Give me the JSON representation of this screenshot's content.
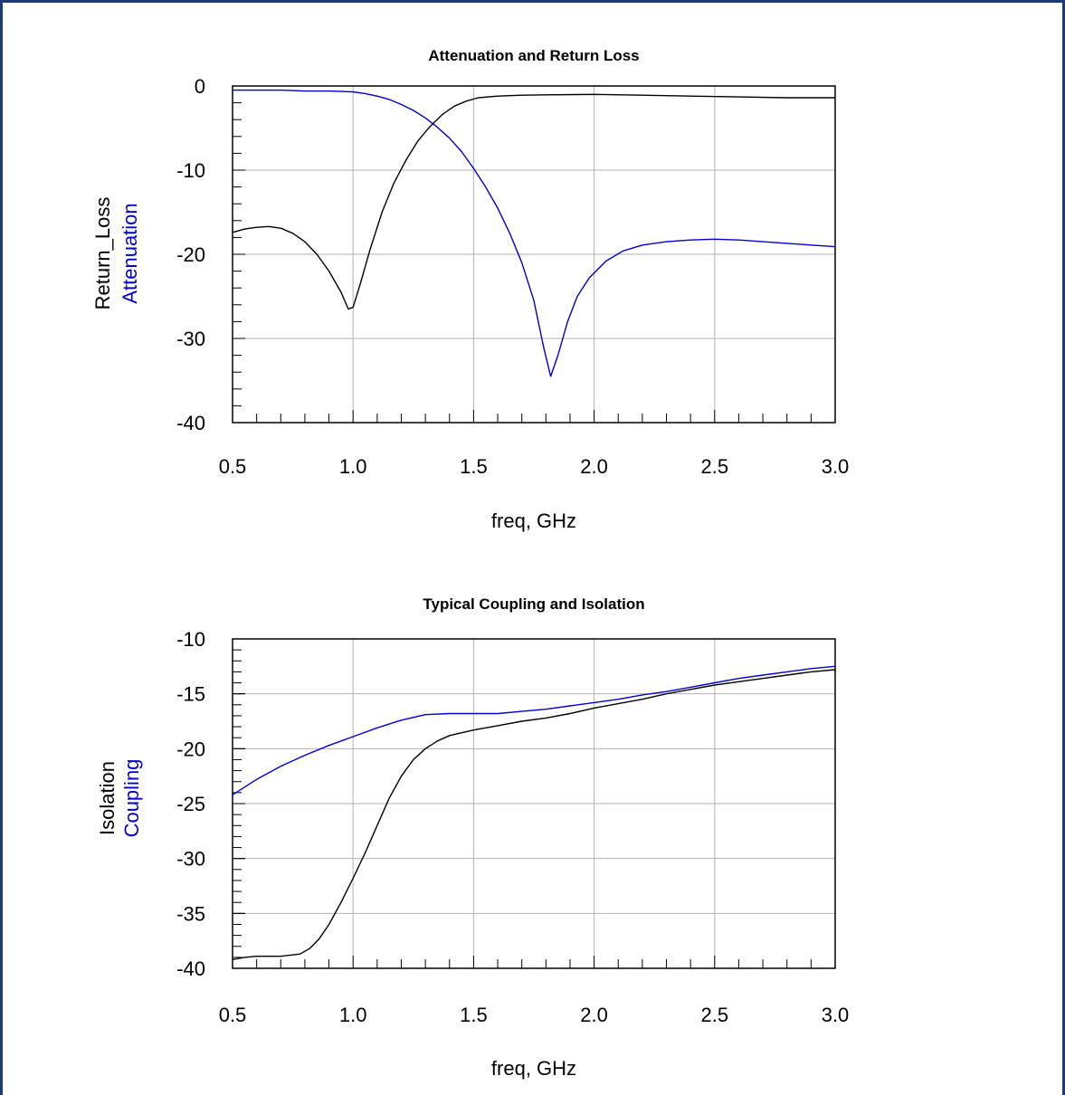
{
  "colors": {
    "black_series": "#000000",
    "blue_series": "#0000cc",
    "grid": "#b3b3b3",
    "frame": "#1f3a7a"
  },
  "chart_data": [
    {
      "type": "line",
      "title": "Attenuation and Return Loss",
      "xlabel": "freq, GHz",
      "ylabel_lines": [
        "Return_Loss",
        "Attenuation"
      ],
      "xlim": [
        0.5,
        3.0
      ],
      "ylim": [
        -40,
        0
      ],
      "xticks": [
        "0.5",
        "1.0",
        "1.5",
        "2.0",
        "2.5",
        "3.0"
      ],
      "yticks": [
        "0",
        "-10",
        "-20",
        "-30",
        "-40"
      ],
      "grid": true,
      "series": [
        {
          "name": "Return_Loss",
          "color": "black",
          "points": [
            [
              0.5,
              -17.4
            ],
            [
              0.55,
              -17.0
            ],
            [
              0.6,
              -16.8
            ],
            [
              0.65,
              -16.7
            ],
            [
              0.7,
              -16.9
            ],
            [
              0.75,
              -17.5
            ],
            [
              0.8,
              -18.5
            ],
            [
              0.85,
              -20.0
            ],
            [
              0.9,
              -22.0
            ],
            [
              0.95,
              -24.5
            ],
            [
              0.98,
              -26.5
            ],
            [
              1.0,
              -26.3
            ],
            [
              1.03,
              -23.5
            ],
            [
              1.07,
              -19.5
            ],
            [
              1.12,
              -15.0
            ],
            [
              1.17,
              -11.5
            ],
            [
              1.22,
              -8.8
            ],
            [
              1.27,
              -6.5
            ],
            [
              1.32,
              -4.8
            ],
            [
              1.37,
              -3.4
            ],
            [
              1.42,
              -2.4
            ],
            [
              1.47,
              -1.8
            ],
            [
              1.52,
              -1.4
            ],
            [
              1.6,
              -1.2
            ],
            [
              1.7,
              -1.1
            ],
            [
              1.8,
              -1.05
            ],
            [
              2.0,
              -1.0
            ],
            [
              2.2,
              -1.1
            ],
            [
              2.4,
              -1.2
            ],
            [
              2.6,
              -1.3
            ],
            [
              2.8,
              -1.4
            ],
            [
              3.0,
              -1.4
            ]
          ]
        },
        {
          "name": "Attenuation",
          "color": "blue",
          "points": [
            [
              0.5,
              -0.5
            ],
            [
              0.7,
              -0.5
            ],
            [
              0.8,
              -0.6
            ],
            [
              0.9,
              -0.6
            ],
            [
              1.0,
              -0.7
            ],
            [
              1.05,
              -0.9
            ],
            [
              1.1,
              -1.2
            ],
            [
              1.15,
              -1.6
            ],
            [
              1.2,
              -2.2
            ],
            [
              1.25,
              -2.9
            ],
            [
              1.3,
              -3.8
            ],
            [
              1.35,
              -4.9
            ],
            [
              1.4,
              -6.2
            ],
            [
              1.45,
              -7.8
            ],
            [
              1.5,
              -9.8
            ],
            [
              1.55,
              -12.0
            ],
            [
              1.6,
              -14.5
            ],
            [
              1.65,
              -17.5
            ],
            [
              1.7,
              -21.0
            ],
            [
              1.75,
              -25.5
            ],
            [
              1.79,
              -31.0
            ],
            [
              1.82,
              -34.5
            ],
            [
              1.85,
              -32.0
            ],
            [
              1.89,
              -28.0
            ],
            [
              1.93,
              -25.0
            ],
            [
              1.98,
              -22.8
            ],
            [
              2.05,
              -20.8
            ],
            [
              2.12,
              -19.6
            ],
            [
              2.2,
              -18.9
            ],
            [
              2.3,
              -18.5
            ],
            [
              2.4,
              -18.3
            ],
            [
              2.5,
              -18.2
            ],
            [
              2.6,
              -18.3
            ],
            [
              2.7,
              -18.5
            ],
            [
              2.8,
              -18.7
            ],
            [
              2.9,
              -18.9
            ],
            [
              3.0,
              -19.1
            ]
          ]
        }
      ]
    },
    {
      "type": "line",
      "title": "Typical Coupling and Isolation",
      "xlabel": "freq, GHz",
      "ylabel_lines": [
        "Isolation",
        "Coupling"
      ],
      "xlim": [
        0.5,
        3.0
      ],
      "ylim": [
        -40,
        -10
      ],
      "xticks": [
        "0.5",
        "1.0",
        "1.5",
        "2.0",
        "2.5",
        "3.0"
      ],
      "yticks": [
        "-10",
        "-15",
        "-20",
        "-25",
        "-30",
        "-35",
        "-40"
      ],
      "grid": true,
      "series": [
        {
          "name": "Isolation",
          "color": "black",
          "points": [
            [
              0.5,
              -39.2
            ],
            [
              0.55,
              -39.0
            ],
            [
              0.6,
              -38.9
            ],
            [
              0.7,
              -38.9
            ],
            [
              0.78,
              -38.7
            ],
            [
              0.82,
              -38.2
            ],
            [
              0.86,
              -37.3
            ],
            [
              0.9,
              -36.0
            ],
            [
              0.95,
              -34.0
            ],
            [
              1.0,
              -31.8
            ],
            [
              1.05,
              -29.5
            ],
            [
              1.1,
              -27.0
            ],
            [
              1.15,
              -24.5
            ],
            [
              1.2,
              -22.5
            ],
            [
              1.25,
              -21.0
            ],
            [
              1.3,
              -20.0
            ],
            [
              1.35,
              -19.3
            ],
            [
              1.4,
              -18.8
            ],
            [
              1.5,
              -18.3
            ],
            [
              1.6,
              -17.9
            ],
            [
              1.7,
              -17.5
            ],
            [
              1.8,
              -17.2
            ],
            [
              1.9,
              -16.8
            ],
            [
              2.0,
              -16.3
            ],
            [
              2.1,
              -15.9
            ],
            [
              2.2,
              -15.5
            ],
            [
              2.3,
              -15.0
            ],
            [
              2.4,
              -14.6
            ],
            [
              2.5,
              -14.2
            ],
            [
              2.6,
              -13.9
            ],
            [
              2.7,
              -13.6
            ],
            [
              2.8,
              -13.3
            ],
            [
              2.9,
              -13.0
            ],
            [
              3.0,
              -12.8
            ]
          ]
        },
        {
          "name": "Coupling",
          "color": "blue",
          "points": [
            [
              0.5,
              -24.2
            ],
            [
              0.55,
              -23.5
            ],
            [
              0.6,
              -22.8
            ],
            [
              0.7,
              -21.6
            ],
            [
              0.8,
              -20.6
            ],
            [
              0.9,
              -19.7
            ],
            [
              1.0,
              -18.9
            ],
            [
              1.1,
              -18.1
            ],
            [
              1.2,
              -17.4
            ],
            [
              1.3,
              -16.9
            ],
            [
              1.4,
              -16.8
            ],
            [
              1.5,
              -16.8
            ],
            [
              1.6,
              -16.8
            ],
            [
              1.7,
              -16.6
            ],
            [
              1.8,
              -16.4
            ],
            [
              1.9,
              -16.1
            ],
            [
              2.0,
              -15.8
            ],
            [
              2.1,
              -15.5
            ],
            [
              2.2,
              -15.1
            ],
            [
              2.3,
              -14.8
            ],
            [
              2.4,
              -14.4
            ],
            [
              2.5,
              -14.0
            ],
            [
              2.6,
              -13.6
            ],
            [
              2.7,
              -13.3
            ],
            [
              2.8,
              -13.0
            ],
            [
              2.9,
              -12.7
            ],
            [
              3.0,
              -12.5
            ]
          ]
        }
      ]
    }
  ]
}
